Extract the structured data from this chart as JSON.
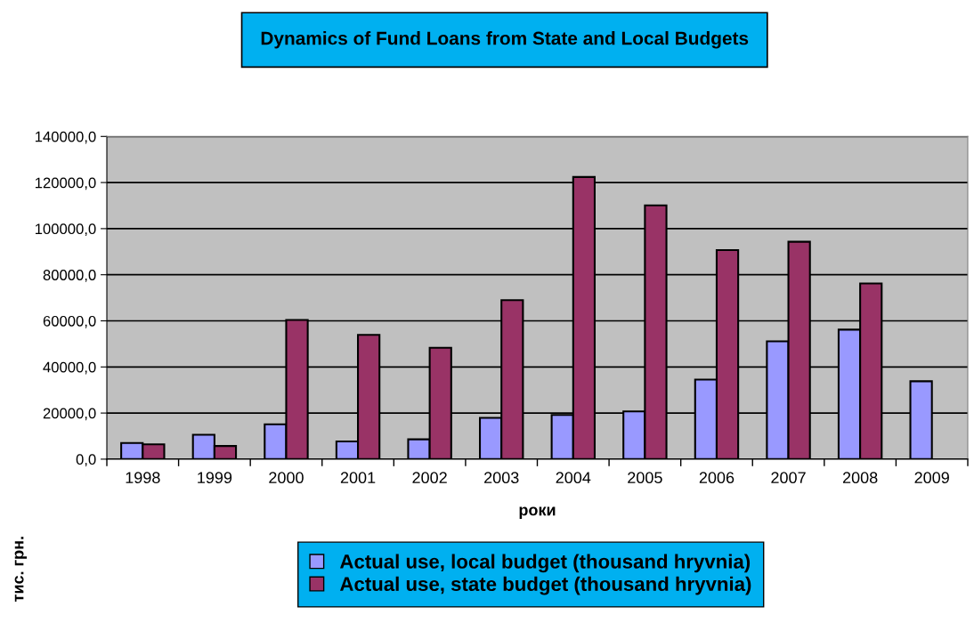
{
  "chart_data": {
    "type": "bar",
    "title": "Dynamics of Fund Loans from State and Local Budgets",
    "xlabel": "роки",
    "ylabel": "тис. грн.",
    "categories": [
      "1998",
      "1999",
      "2000",
      "2001",
      "2002",
      "2003",
      "2004",
      "2005",
      "2006",
      "2007",
      "2008",
      "2009"
    ],
    "series": [
      {
        "name": "Actual use, local budget (thousand hryvnia)",
        "color": "#9999ff",
        "values": [
          7000,
          10600,
          15100,
          7700,
          8600,
          17900,
          19200,
          20700,
          34500,
          51100,
          56200,
          33800
        ]
      },
      {
        "name": "Actual use, state budget (thousand hryvnia)",
        "color": "#993366",
        "values": [
          6400,
          5700,
          60400,
          53900,
          48300,
          69000,
          122400,
          110100,
          90700,
          94300,
          76200,
          null
        ]
      }
    ],
    "ylim": [
      0,
      140000
    ],
    "yticks": [
      {
        "value": 0,
        "label": "0,0"
      },
      {
        "value": 20000,
        "label": "20000,0"
      },
      {
        "value": 40000,
        "label": "40000,0"
      },
      {
        "value": 60000,
        "label": "60000,0"
      },
      {
        "value": 80000,
        "label": "80000,0"
      },
      {
        "value": 100000,
        "label": "100000,0"
      },
      {
        "value": 120000,
        "label": "120000,0"
      },
      {
        "value": 140000,
        "label": "140000,0"
      }
    ],
    "grid": "y",
    "legend": "bottom"
  }
}
